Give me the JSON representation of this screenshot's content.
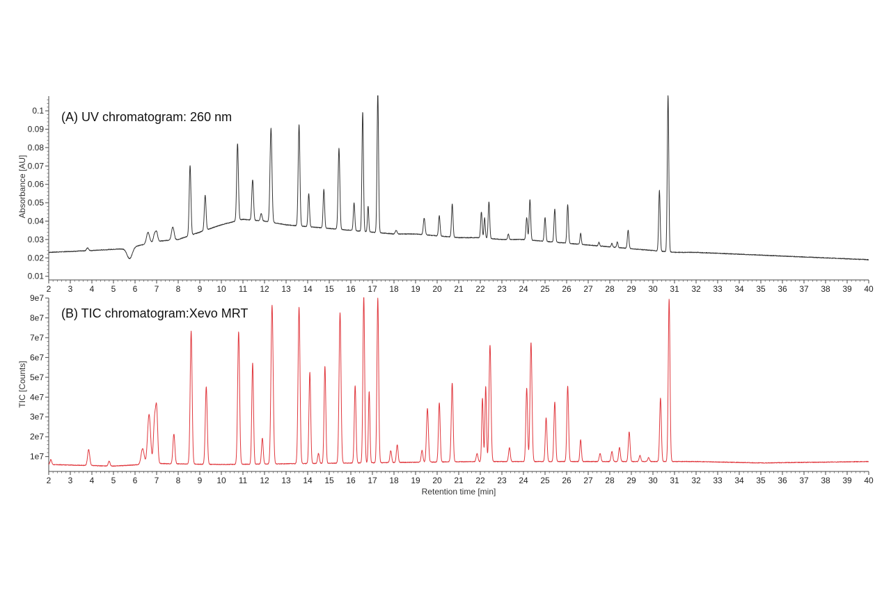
{
  "chart_data": [
    {
      "type": "line",
      "title": "(A) UV chromatogram: 260 nm",
      "ylabel": "Absorbance [AU]",
      "xlabel": "",
      "xlim": [
        2,
        40
      ],
      "ylim": [
        0.008,
        0.108
      ],
      "x_ticks": [
        2,
        3,
        4,
        5,
        6,
        7,
        8,
        9,
        10,
        11,
        12,
        13,
        14,
        15,
        16,
        17,
        18,
        19,
        20,
        21,
        22,
        23,
        24,
        25,
        26,
        27,
        28,
        29,
        30,
        31,
        32,
        33,
        34,
        35,
        36,
        37,
        38,
        39,
        40
      ],
      "y_ticks": [
        0.01,
        0.02,
        0.03,
        0.04,
        0.05,
        0.06,
        0.07,
        0.08,
        0.09,
        0.1
      ],
      "y_tick_labels": [
        "0.01",
        "0.02",
        "0.03",
        "0.04",
        "0.05",
        "0.06",
        "0.07",
        "0.08",
        "0.09",
        "0.1"
      ],
      "grid": false,
      "color": "#333333",
      "baseline": [
        [
          2,
          0.023
        ],
        [
          4,
          0.024
        ],
        [
          5.5,
          0.025
        ],
        [
          6.3,
          0.027
        ],
        [
          7,
          0.029
        ],
        [
          8,
          0.03
        ],
        [
          9,
          0.034
        ],
        [
          10,
          0.038
        ],
        [
          11,
          0.041
        ],
        [
          12,
          0.04
        ],
        [
          13,
          0.038
        ],
        [
          14,
          0.037
        ],
        [
          15,
          0.036
        ],
        [
          16,
          0.035
        ],
        [
          17,
          0.034
        ],
        [
          18,
          0.033
        ],
        [
          19,
          0.033
        ],
        [
          20,
          0.032
        ],
        [
          21,
          0.031
        ],
        [
          22,
          0.031
        ],
        [
          23,
          0.03
        ],
        [
          24,
          0.03
        ],
        [
          25,
          0.029
        ],
        [
          26,
          0.028
        ],
        [
          27,
          0.027
        ],
        [
          28,
          0.026
        ],
        [
          29,
          0.025
        ],
        [
          30,
          0.024
        ],
        [
          31,
          0.023
        ],
        [
          32,
          0.023
        ],
        [
          34,
          0.022
        ],
        [
          36,
          0.021
        ],
        [
          38,
          0.02
        ],
        [
          40,
          0.019
        ]
      ],
      "peaks": [
        {
          "rt": 3.8,
          "height": 0.0015,
          "width": 0.05
        },
        {
          "rt": 5.75,
          "height": -0.006,
          "width": 0.12
        },
        {
          "rt": 6.6,
          "height": 0.006,
          "width": 0.07
        },
        {
          "rt": 6.9,
          "height": 0.004,
          "width": 0.05
        },
        {
          "rt": 7.0,
          "height": 0.005,
          "width": 0.05
        },
        {
          "rt": 7.75,
          "height": 0.007,
          "width": 0.06
        },
        {
          "rt": 8.55,
          "height": 0.038,
          "width": 0.04
        },
        {
          "rt": 9.25,
          "height": 0.019,
          "width": 0.04
        },
        {
          "rt": 10.75,
          "height": 0.042,
          "width": 0.04
        },
        {
          "rt": 11.45,
          "height": 0.022,
          "width": 0.04
        },
        {
          "rt": 11.85,
          "height": 0.004,
          "width": 0.04
        },
        {
          "rt": 12.3,
          "height": 0.051,
          "width": 0.045
        },
        {
          "rt": 13.6,
          "height": 0.055,
          "width": 0.04
        },
        {
          "rt": 14.05,
          "height": 0.018,
          "width": 0.035
        },
        {
          "rt": 14.75,
          "height": 0.021,
          "width": 0.035
        },
        {
          "rt": 15.45,
          "height": 0.044,
          "width": 0.04
        },
        {
          "rt": 16.15,
          "height": 0.015,
          "width": 0.035
        },
        {
          "rt": 16.55,
          "height": 0.065,
          "width": 0.035
        },
        {
          "rt": 16.8,
          "height": 0.014,
          "width": 0.03
        },
        {
          "rt": 17.25,
          "height": 0.076,
          "width": 0.035
        },
        {
          "rt": 18.1,
          "height": 0.002,
          "width": 0.04
        },
        {
          "rt": 19.4,
          "height": 0.009,
          "width": 0.04
        },
        {
          "rt": 20.1,
          "height": 0.011,
          "width": 0.035
        },
        {
          "rt": 20.7,
          "height": 0.018,
          "width": 0.035
        },
        {
          "rt": 22.05,
          "height": 0.014,
          "width": 0.035
        },
        {
          "rt": 22.2,
          "height": 0.011,
          "width": 0.03
        },
        {
          "rt": 22.4,
          "height": 0.02,
          "width": 0.035
        },
        {
          "rt": 23.3,
          "height": 0.003,
          "width": 0.03
        },
        {
          "rt": 24.15,
          "height": 0.012,
          "width": 0.035
        },
        {
          "rt": 24.3,
          "height": 0.022,
          "width": 0.035
        },
        {
          "rt": 25.0,
          "height": 0.013,
          "width": 0.035
        },
        {
          "rt": 25.45,
          "height": 0.018,
          "width": 0.035
        },
        {
          "rt": 26.05,
          "height": 0.021,
          "width": 0.035
        },
        {
          "rt": 26.65,
          "height": 0.006,
          "width": 0.03
        },
        {
          "rt": 27.5,
          "height": 0.002,
          "width": 0.03
        },
        {
          "rt": 28.1,
          "height": 0.002,
          "width": 0.03
        },
        {
          "rt": 28.35,
          "height": 0.003,
          "width": 0.03
        },
        {
          "rt": 28.85,
          "height": 0.01,
          "width": 0.035
        },
        {
          "rt": 30.3,
          "height": 0.033,
          "width": 0.035
        },
        {
          "rt": 30.7,
          "height": 0.085,
          "width": 0.035
        }
      ]
    },
    {
      "type": "line",
      "title": "(B) TIC chromatogram:Xevo MRT",
      "ylabel": "TIC [Counts]",
      "xlabel": "Retention time [min]",
      "xlim": [
        2,
        40
      ],
      "ylim": [
        2500000,
        90000000
      ],
      "x_ticks": [
        2,
        3,
        4,
        5,
        6,
        7,
        8,
        9,
        10,
        11,
        12,
        13,
        14,
        15,
        16,
        17,
        18,
        19,
        20,
        21,
        22,
        23,
        24,
        25,
        26,
        27,
        28,
        29,
        30,
        31,
        32,
        33,
        34,
        35,
        36,
        37,
        38,
        39,
        40
      ],
      "y_ticks": [
        10000000,
        20000000,
        30000000,
        40000000,
        50000000,
        60000000,
        70000000,
        80000000,
        90000000
      ],
      "y_tick_labels": [
        "1e7",
        "2e7",
        "3e7",
        "4e7",
        "5e7",
        "6e7",
        "7e7",
        "8e7",
        "9e7"
      ],
      "grid": false,
      "color": "#e0363c",
      "baseline": [
        [
          2,
          6000000
        ],
        [
          5,
          5200000
        ],
        [
          6,
          5800000
        ],
        [
          7,
          6500000
        ],
        [
          10,
          6000000
        ],
        [
          14,
          6500000
        ],
        [
          18,
          7000000
        ],
        [
          22,
          7500000
        ],
        [
          26,
          7500000
        ],
        [
          30,
          7500000
        ],
        [
          32,
          7500000
        ],
        [
          35,
          6800000
        ],
        [
          38,
          7200000
        ],
        [
          40,
          7500000
        ]
      ],
      "peaks": [
        {
          "rt": 2.1,
          "height": 2500000,
          "width": 0.04
        },
        {
          "rt": 3.85,
          "height": 8000000,
          "width": 0.05
        },
        {
          "rt": 4.8,
          "height": 2500000,
          "width": 0.04
        },
        {
          "rt": 6.35,
          "height": 8000000,
          "width": 0.07
        },
        {
          "rt": 6.65,
          "height": 25000000,
          "width": 0.07
        },
        {
          "rt": 6.9,
          "height": 20000000,
          "width": 0.05
        },
        {
          "rt": 7.0,
          "height": 27000000,
          "width": 0.05
        },
        {
          "rt": 7.8,
          "height": 15000000,
          "width": 0.045
        },
        {
          "rt": 8.6,
          "height": 67000000,
          "width": 0.045
        },
        {
          "rt": 9.3,
          "height": 39000000,
          "width": 0.045
        },
        {
          "rt": 10.8,
          "height": 67000000,
          "width": 0.045
        },
        {
          "rt": 11.45,
          "height": 51000000,
          "width": 0.04
        },
        {
          "rt": 11.9,
          "height": 13000000,
          "width": 0.04
        },
        {
          "rt": 12.35,
          "height": 80000000,
          "width": 0.05
        },
        {
          "rt": 13.6,
          "height": 79000000,
          "width": 0.045
        },
        {
          "rt": 14.1,
          "height": 46000000,
          "width": 0.04
        },
        {
          "rt": 14.5,
          "height": 5000000,
          "width": 0.04
        },
        {
          "rt": 14.8,
          "height": 49000000,
          "width": 0.04
        },
        {
          "rt": 15.5,
          "height": 76000000,
          "width": 0.045
        },
        {
          "rt": 16.2,
          "height": 39000000,
          "width": 0.04
        },
        {
          "rt": 16.6,
          "height": 84000000,
          "width": 0.04
        },
        {
          "rt": 16.85,
          "height": 36000000,
          "width": 0.035
        },
        {
          "rt": 17.25,
          "height": 83000000,
          "width": 0.04
        },
        {
          "rt": 17.85,
          "height": 6000000,
          "width": 0.04
        },
        {
          "rt": 18.15,
          "height": 9000000,
          "width": 0.04
        },
        {
          "rt": 19.3,
          "height": 6000000,
          "width": 0.04
        },
        {
          "rt": 19.55,
          "height": 27000000,
          "width": 0.045
        },
        {
          "rt": 20.1,
          "height": 30000000,
          "width": 0.04
        },
        {
          "rt": 20.65,
          "height": 4000000,
          "width": 0.04
        },
        {
          "rt": 20.7,
          "height": 38000000,
          "width": 0.04
        },
        {
          "rt": 21.85,
          "height": 4000000,
          "width": 0.04
        },
        {
          "rt": 22.1,
          "height": 32000000,
          "width": 0.035
        },
        {
          "rt": 22.25,
          "height": 38000000,
          "width": 0.035
        },
        {
          "rt": 22.45,
          "height": 59000000,
          "width": 0.045
        },
        {
          "rt": 23.35,
          "height": 7000000,
          "width": 0.04
        },
        {
          "rt": 24.15,
          "height": 37000000,
          "width": 0.04
        },
        {
          "rt": 24.35,
          "height": 60000000,
          "width": 0.045
        },
        {
          "rt": 25.05,
          "height": 22000000,
          "width": 0.04
        },
        {
          "rt": 25.45,
          "height": 30000000,
          "width": 0.04
        },
        {
          "rt": 26.05,
          "height": 38000000,
          "width": 0.04
        },
        {
          "rt": 26.65,
          "height": 11000000,
          "width": 0.035
        },
        {
          "rt": 27.55,
          "height": 4000000,
          "width": 0.04
        },
        {
          "rt": 28.1,
          "height": 5000000,
          "width": 0.04
        },
        {
          "rt": 28.45,
          "height": 7000000,
          "width": 0.04
        },
        {
          "rt": 28.9,
          "height": 15000000,
          "width": 0.04
        },
        {
          "rt": 29.4,
          "height": 3000000,
          "width": 0.04
        },
        {
          "rt": 29.8,
          "height": 2000000,
          "width": 0.04
        },
        {
          "rt": 30.35,
          "height": 32000000,
          "width": 0.04
        },
        {
          "rt": 30.75,
          "height": 82000000,
          "width": 0.04
        }
      ]
    }
  ]
}
